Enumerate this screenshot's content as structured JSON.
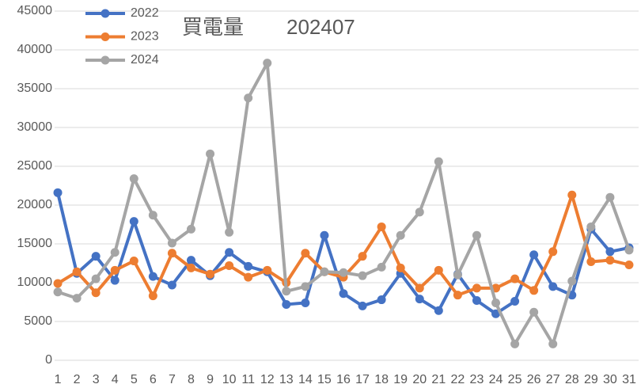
{
  "chart_data": {
    "type": "line",
    "title": "買電量",
    "subtitle": "202407",
    "categories": [
      "1",
      "2",
      "3",
      "4",
      "5",
      "6",
      "7",
      "8",
      "9",
      "10",
      "11",
      "12",
      "13",
      "14",
      "15",
      "16",
      "17",
      "18",
      "19",
      "20",
      "21",
      "22",
      "23",
      "24",
      "25",
      "26",
      "27",
      "28",
      "29",
      "30",
      "31"
    ],
    "series": [
      {
        "name": "2022",
        "color": "#4472c4",
        "values": [
          21600,
          11200,
          13400,
          10300,
          17900,
          10800,
          9700,
          12900,
          10900,
          13900,
          12100,
          11400,
          7200,
          7400,
          16100,
          8600,
          7000,
          7800,
          11200,
          7900,
          6400,
          11100,
          7700,
          6000,
          7600,
          13600,
          9500,
          8400,
          16900,
          14000,
          14500
        ]
      },
      {
        "name": "2023",
        "color": "#ed7d31",
        "values": [
          9900,
          11400,
          8700,
          11600,
          12800,
          8300,
          13800,
          11900,
          11100,
          12200,
          10700,
          11600,
          10000,
          13800,
          11400,
          10700,
          13400,
          17200,
          11900,
          9300,
          11600,
          8400,
          9300,
          9300,
          10500,
          9000,
          14000,
          21300,
          12700,
          12900,
          12300
        ]
      },
      {
        "name": "2024",
        "color": "#a5a5a5",
        "values": [
          8800,
          8000,
          10500,
          13900,
          23400,
          18700,
          15100,
          16900,
          26600,
          16500,
          33800,
          38300,
          8900,
          9500,
          11400,
          11300,
          10900,
          12000,
          16100,
          19100,
          25600,
          11000,
          16100,
          7400,
          2100,
          6200,
          2100,
          10200,
          17200,
          21000,
          14200
        ]
      }
    ],
    "ylim": [
      0,
      45000
    ],
    "yticks": [
      0,
      5000,
      10000,
      15000,
      20000,
      25000,
      30000,
      35000,
      40000,
      45000
    ],
    "grid": true,
    "legend": "top-left"
  }
}
